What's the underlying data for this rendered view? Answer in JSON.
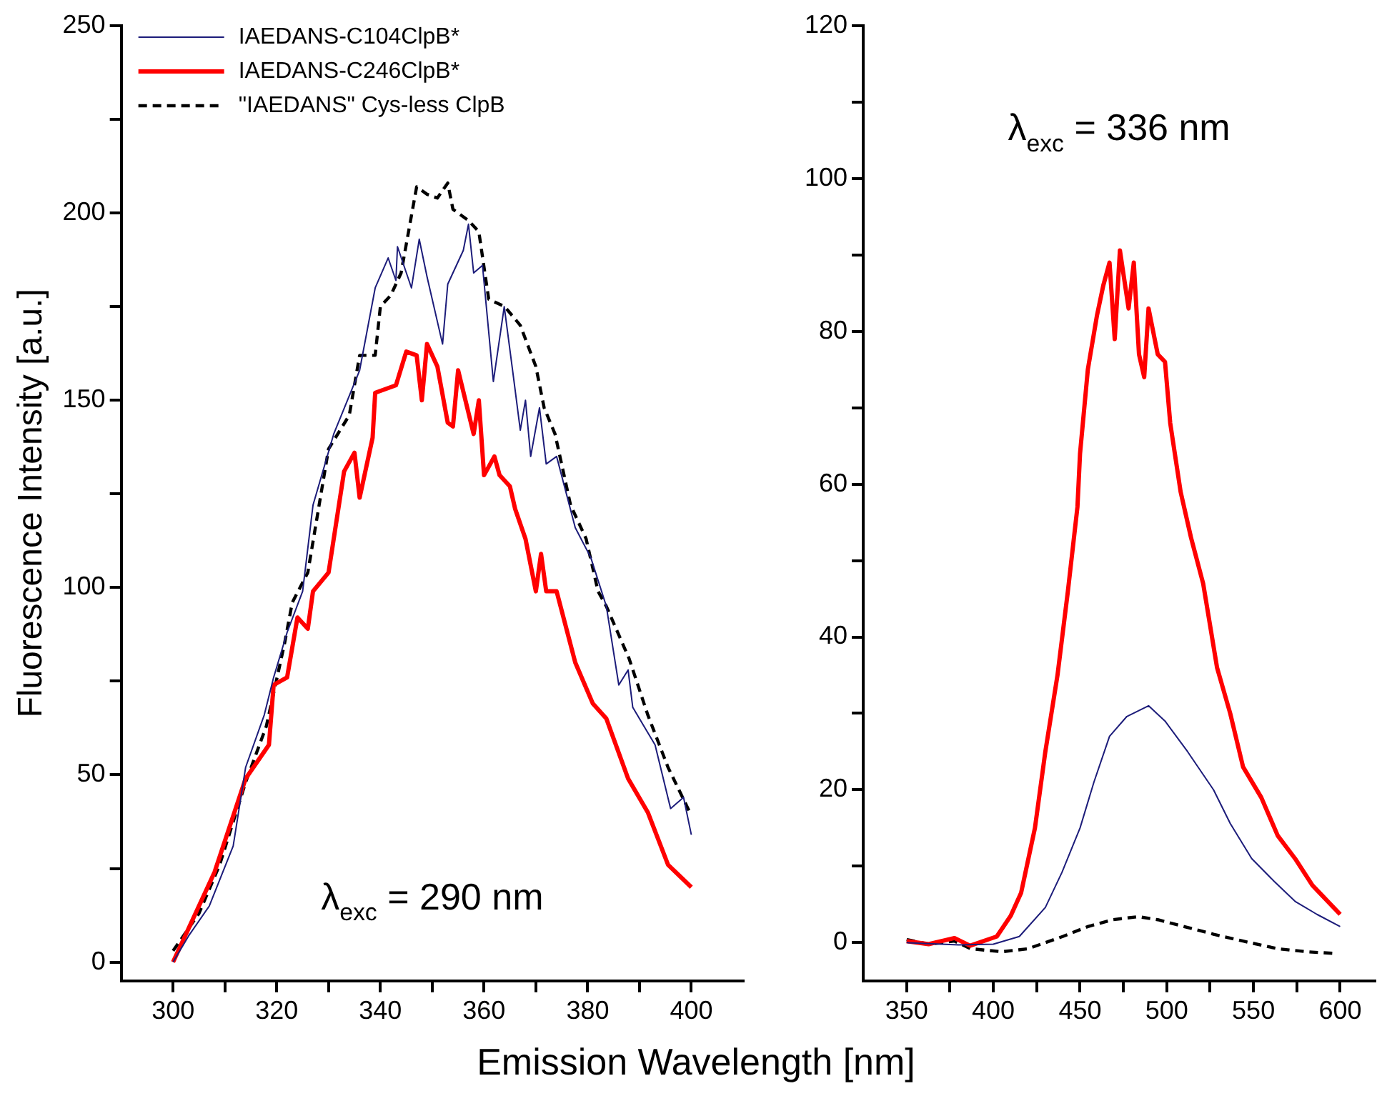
{
  "chart_data": [
    {
      "type": "line",
      "ylabel": "Fluorescence Intensity [a.u.]",
      "xlabel": "Emission Wavelength [nm]",
      "xlim": [
        290,
        410
      ],
      "ylim": [
        -5,
        250
      ],
      "xticks": [
        300,
        {
          "value": 310,
          "label": null
        },
        320,
        {
          "value": 330,
          "label": null
        },
        340,
        {
          "value": 350,
          "label": null
        },
        360,
        {
          "value": 370,
          "label": null
        },
        380,
        {
          "value": 390,
          "label": null
        },
        400
      ],
      "yticks": [
        0,
        {
          "value": 25,
          "label": null
        },
        50,
        {
          "value": 75,
          "label": null
        },
        100,
        {
          "value": 125,
          "label": null
        },
        150,
        {
          "value": 175,
          "label": null
        },
        200,
        {
          "value": 225,
          "label": null
        },
        250
      ],
      "legend": "top left",
      "annotations": [
        "λ$_{exc}$ = 290 nm"
      ],
      "series": [
        {
          "name": "IAEDANS-C104ClpB*",
          "color": "#1c1c7a",
          "x": [
            300,
            303,
            307,
            311.6,
            314,
            317.6,
            319.4,
            322,
            325,
            327,
            331,
            336,
            339,
            341.5,
            343,
            343.3,
            346,
            347.5,
            349,
            352,
            353,
            356,
            357,
            358,
            359.7,
            361.8,
            363.9,
            365.7,
            367,
            368,
            369,
            370.7,
            372,
            374,
            377.6,
            380.6,
            383.6,
            386,
            387.8,
            388.7,
            393,
            396,
            398.5,
            400
          ],
          "values": [
            0,
            7,
            15,
            31,
            52,
            66,
            76,
            88,
            99,
            122,
            141,
            158,
            180,
            188,
            182,
            191,
            180,
            193,
            183,
            165,
            181,
            190,
            197,
            184,
            186,
            155,
            175,
            156,
            142,
            150,
            135,
            148,
            133,
            135,
            116,
            108,
            95,
            74,
            78,
            68,
            58,
            41,
            44,
            34
          ]
        },
        {
          "name": "IAEDANS-C246ClpB*",
          "color": "#ff0000",
          "x": [
            300,
            308,
            314,
            318.5,
            319.4,
            322,
            324,
            326,
            327,
            330,
            333,
            335,
            336,
            338.5,
            339,
            341,
            343,
            345,
            347,
            348,
            349,
            351,
            353,
            354,
            355,
            358,
            359,
            360,
            362,
            363,
            365,
            366,
            368,
            370,
            371,
            372,
            374,
            377.6,
            381,
            383.6,
            387.8,
            391.6,
            395.5,
            400
          ],
          "values": [
            0,
            24,
            49,
            58,
            74,
            76,
            92,
            89,
            99,
            104,
            131,
            136,
            124,
            140,
            152,
            153,
            154,
            163,
            162,
            150,
            165,
            159,
            144,
            143,
            158,
            141,
            150,
            130,
            135,
            130,
            127,
            121,
            113,
            99,
            109,
            99,
            99,
            80,
            69,
            65,
            49,
            40,
            26,
            20
          ]
        },
        {
          "name": "\"IAEDANS\" Cys-less ClpB",
          "color": "#000000",
          "line_style": "dashed",
          "x": [
            300,
            305,
            309,
            314,
            318,
            321.5,
            323,
            326,
            330,
            334,
            336,
            339,
            340,
            342,
            344,
            347,
            349,
            351,
            353,
            354,
            357,
            359,
            360.9,
            364,
            367,
            370,
            371.6,
            373.7,
            376.7,
            379.7,
            382,
            383.6,
            388,
            391.6,
            395.5,
            399.7
          ],
          "values": [
            3,
            13,
            26,
            48,
            63,
            85,
            96,
            104,
            137,
            146,
            162,
            162,
            175,
            178,
            184,
            207,
            205,
            204,
            208,
            201,
            198,
            195,
            177,
            175,
            170,
            159,
            148,
            141,
            122,
            113,
            99,
            95,
            81,
            66,
            52,
            40
          ]
        }
      ]
    },
    {
      "type": "line",
      "xlim": [
        325,
        620
      ],
      "ylim": [
        -5,
        120
      ],
      "xticks": [
        350,
        {
          "value": 375,
          "label": null
        },
        400,
        {
          "value": 425,
          "label": null
        },
        450,
        {
          "value": 475,
          "label": null
        },
        500,
        {
          "value": 525,
          "label": null
        },
        550,
        {
          "value": 575,
          "label": null
        },
        600
      ],
      "yticks": [
        0,
        {
          "value": 10,
          "label": null
        },
        20,
        {
          "value": 30,
          "label": null
        },
        40,
        {
          "value": 50,
          "label": null
        },
        60,
        {
          "value": 70,
          "label": null
        },
        80,
        {
          "value": 90,
          "label": null
        },
        100,
        {
          "value": 110,
          "label": null
        },
        120
      ],
      "annotations": [
        "λ$_{exc}$ = 336 nm"
      ],
      "series": [
        {
          "color": "#1c1c7a",
          "x": [
            350,
            380,
            400,
            415,
            430,
            439.6,
            450,
            458,
            467,
            477,
            489.5,
            499,
            512,
            527,
            536.6,
            549,
            562,
            574,
            586.6,
            600
          ],
          "values": [
            0,
            -0.3,
            -0.2,
            0.8,
            4.6,
            9.2,
            15,
            21,
            27,
            29.6,
            31,
            29,
            25,
            20,
            15.6,
            11,
            8,
            5.4,
            3.7,
            2.1
          ]
        },
        {
          "color": "#ff0000",
          "x": [
            350,
            362.7,
            377.6,
            386.6,
            402,
            410,
            416,
            424,
            430,
            437,
            443,
            448.5,
            450,
            454.5,
            459.7,
            463.4,
            467,
            470,
            473,
            478,
            481,
            484,
            487,
            489.5,
            494.8,
            499,
            502,
            508,
            514,
            521,
            529,
            536.6,
            544,
            554.5,
            564,
            574,
            584,
            600
          ],
          "values": [
            0.2,
            -0.2,
            0.6,
            -0.4,
            0.8,
            3.5,
            6.5,
            15,
            25,
            35,
            46,
            57,
            64,
            75,
            82,
            86,
            89,
            79,
            90.6,
            83,
            89,
            77,
            74,
            83,
            77,
            76,
            68,
            59,
            53,
            47,
            36,
            30,
            23,
            19,
            14,
            11,
            7.5,
            3.7
          ]
        },
        {
          "color": "#000000",
          "line_style": "dashed",
          "x": [
            350,
            363,
            377.6,
            387,
            405,
            420,
            440,
            454.5,
            469,
            483.6,
            494.8,
            510,
            527,
            544,
            564,
            581,
            595.5
          ],
          "values": [
            0.4,
            -0.2,
            0.2,
            -0.8,
            -1.2,
            -0.8,
            0.8,
            2.1,
            3,
            3.4,
            3,
            2.1,
            1.1,
            0.2,
            -0.8,
            -1.2,
            -1.4
          ]
        }
      ]
    }
  ]
}
